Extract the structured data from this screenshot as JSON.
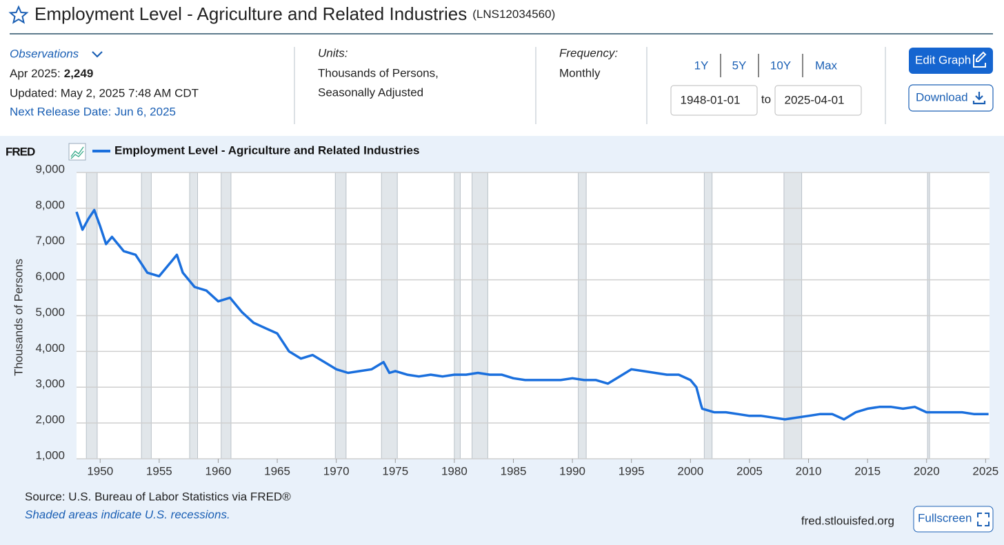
{
  "header": {
    "title": "Employment Level - Agriculture and Related Industries",
    "series_id": "(LNS12034560)"
  },
  "info": {
    "observations_label": "Observations",
    "latest_date": "Apr 2025:",
    "latest_value": "2,249",
    "updated": "Updated: May 2, 2025 7:48 AM CDT",
    "next_release": "Next Release Date: Jun 6, 2025",
    "units_label": "Units:",
    "units_lines": [
      "Thousands of Persons,",
      "Seasonally Adjusted"
    ],
    "frequency_label": "Frequency:",
    "frequency": "Monthly"
  },
  "controls": {
    "ranges": [
      "1Y",
      "5Y",
      "10Y",
      "Max"
    ],
    "start_date": "1948-01-01",
    "to": "to",
    "end_date": "2025-04-01",
    "edit_graph": "Edit Graph",
    "download": "Download",
    "fullscreen": "Fullscreen"
  },
  "footer": {
    "source": "Source: U.S. Bureau of Labor Statistics via FRED®",
    "note": "Shaded areas indicate U.S. recessions.",
    "site": "fred.stlouisfed.org"
  },
  "chart_data": {
    "type": "line",
    "logo": "FRED",
    "ylabel": "Thousands of Persons",
    "xlim": [
      1948,
      2025.33
    ],
    "ylim": [
      1000,
      9000
    ],
    "xticks": [
      1950,
      1955,
      1960,
      1965,
      1970,
      1975,
      1980,
      1985,
      1990,
      1995,
      2000,
      2005,
      2010,
      2015,
      2020,
      2025
    ],
    "yticks": [
      {
        "value": 1000,
        "label": "1,000"
      },
      {
        "value": 2000,
        "label": "2,000"
      },
      {
        "value": 3000,
        "label": "3,000"
      },
      {
        "value": 4000,
        "label": "4,000"
      },
      {
        "value": 5000,
        "label": "5,000"
      },
      {
        "value": 6000,
        "label": "6,000"
      },
      {
        "value": 7000,
        "label": "7,000"
      },
      {
        "value": 8000,
        "label": "8,000"
      },
      {
        "value": 9000,
        "label": "9,000"
      }
    ],
    "grid": true,
    "recessions": [
      [
        1948.83,
        1949.75
      ],
      [
        1953.5,
        1954.33
      ],
      [
        1957.58,
        1958.25
      ],
      [
        1960.25,
        1961.08
      ],
      [
        1969.92,
        1970.83
      ],
      [
        1973.83,
        1975.17
      ],
      [
        1980.0,
        1980.5
      ],
      [
        1981.5,
        1982.83
      ],
      [
        1990.5,
        1991.17
      ],
      [
        2001.17,
        2001.83
      ],
      [
        2007.92,
        2009.42
      ],
      [
        2020.08,
        2020.25
      ]
    ],
    "series": [
      {
        "name": "Employment Level - Agriculture and Related Industries",
        "color": "#1a6fdd",
        "x": [
          1948,
          1948.5,
          1949,
          1949.5,
          1950,
          1950.5,
          1951,
          1952,
          1953,
          1954,
          1955,
          1956,
          1956.5,
          1957,
          1958,
          1959,
          1960,
          1961,
          1962,
          1963,
          1964,
          1965,
          1966,
          1967,
          1968,
          1969,
          1970,
          1971,
          1972,
          1973,
          1974,
          1974.5,
          1975,
          1976,
          1977,
          1978,
          1979,
          1980,
          1981,
          1982,
          1983,
          1984,
          1985,
          1986,
          1987,
          1988,
          1989,
          1990,
          1991,
          1992,
          1993,
          1994,
          1995,
          1996,
          1997,
          1998,
          1999,
          2000,
          2000.5,
          2000.9,
          2001,
          2002,
          2003,
          2004,
          2005,
          2006,
          2007,
          2008,
          2009,
          2010,
          2011,
          2012,
          2013,
          2014,
          2015,
          2016,
          2017,
          2018,
          2019,
          2020,
          2021,
          2022,
          2023,
          2024,
          2025.25
        ],
        "values": [
          7900,
          7400,
          7700,
          7950,
          7500,
          7000,
          7200,
          6800,
          6700,
          6200,
          6100,
          6500,
          6700,
          6200,
          5800,
          5700,
          5400,
          5500,
          5100,
          4800,
          4650,
          4500,
          4000,
          3800,
          3900,
          3700,
          3500,
          3400,
          3450,
          3500,
          3700,
          3400,
          3450,
          3350,
          3300,
          3350,
          3300,
          3350,
          3350,
          3400,
          3350,
          3350,
          3250,
          3200,
          3200,
          3200,
          3200,
          3250,
          3200,
          3200,
          3100,
          3300,
          3500,
          3450,
          3400,
          3350,
          3350,
          3200,
          3000,
          2500,
          2400,
          2300,
          2300,
          2250,
          2200,
          2200,
          2150,
          2100,
          2150,
          2200,
          2250,
          2250,
          2100,
          2300,
          2400,
          2450,
          2450,
          2400,
          2450,
          2300,
          2300,
          2300,
          2300,
          2250,
          2249
        ]
      }
    ]
  }
}
